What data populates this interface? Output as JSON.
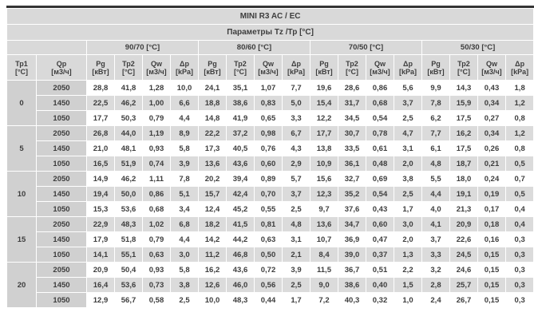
{
  "table": {
    "title": "MINI R3 AC / EC",
    "subtitle": "Параметры Tz /Тр [°C]",
    "groups": [
      "90/70 [°C]",
      "80/60 [°C]",
      "70/50 [°C]",
      "50/30 [°C]"
    ],
    "row_headers": [
      {
        "name": "Тр1",
        "unit": "[°C]"
      },
      {
        "name": "Qp",
        "unit": "[м3/ч]"
      }
    ],
    "measure_headers": [
      {
        "name": "Pg",
        "unit": "[кВт]"
      },
      {
        "name": "Тр2",
        "unit": "[°C]"
      },
      {
        "name": "Qw",
        "unit": "[м3/ч]"
      },
      {
        "name": "Δp",
        "unit": "[kPa]"
      }
    ],
    "colors": {
      "header_gray": "#d9d9d9",
      "left_col_gray": "#d0d0d0",
      "stripe_gray": "#dbdbdb",
      "top_border": "#343434",
      "text": "#3d3d3d"
    },
    "blocks": [
      {
        "tp1": "0",
        "rows": [
          {
            "qp": "2050",
            "values": [
              "28,8",
              "41,8",
              "1,28",
              "10,0",
              "24,1",
              "35,1",
              "1,07",
              "7,7",
              "19,6",
              "28,6",
              "0,86",
              "5,6",
              "9,9",
              "14,3",
              "0,43",
              "1,8"
            ]
          },
          {
            "qp": "1450",
            "values": [
              "22,5",
              "46,2",
              "1,00",
              "6,6",
              "18,8",
              "38,6",
              "0,83",
              "5,0",
              "15,4",
              "31,7",
              "0,68",
              "3,7",
              "7,8",
              "15,9",
              "0,34",
              "1,2"
            ]
          },
          {
            "qp": "1050",
            "values": [
              "17,7",
              "50,3",
              "0,79",
              "4,4",
              "14,8",
              "41,9",
              "0,65",
              "3,3",
              "12,2",
              "34,5",
              "0,54",
              "2,5",
              "6,2",
              "17,5",
              "0,27",
              "0,8"
            ]
          }
        ]
      },
      {
        "tp1": "5",
        "rows": [
          {
            "qp": "2050",
            "values": [
              "26,8",
              "44,0",
              "1,19",
              "8,9",
              "22,2",
              "37,2",
              "0,98",
              "6,7",
              "17,7",
              "30,7",
              "0,78",
              "4,7",
              "7,7",
              "16,2",
              "0,34",
              "1,2"
            ]
          },
          {
            "qp": "1450",
            "values": [
              "21,0",
              "48,1",
              "0,93",
              "5,8",
              "17,3",
              "40,5",
              "0,76",
              "4,3",
              "13,8",
              "33,5",
              "0,61",
              "3,1",
              "6,1",
              "17,5",
              "0,26",
              "0,8"
            ]
          },
          {
            "qp": "1050",
            "values": [
              "16,5",
              "51,9",
              "0,74",
              "3,9",
              "13,6",
              "43,6",
              "0,60",
              "2,9",
              "10,9",
              "36,1",
              "0,48",
              "2,0",
              "4,8",
              "18,7",
              "0,21",
              "0,5"
            ]
          }
        ]
      },
      {
        "tp1": "10",
        "rows": [
          {
            "qp": "2050",
            "values": [
              "14,9",
              "46,2",
              "1,11",
              "7,8",
              "20,2",
              "39,4",
              "0,89",
              "5,7",
              "15,6",
              "32,7",
              "0,69",
              "3,8",
              "5,5",
              "18,0",
              "0,24",
              "0,7"
            ]
          },
          {
            "qp": "1450",
            "values": [
              "19,4",
              "50,0",
              "0,86",
              "5,1",
              "15,7",
              "42,4",
              "0,70",
              "3,7",
              "12,3",
              "35,2",
              "0,54",
              "2,5",
              "4,4",
              "19,1",
              "0,19",
              "0,5"
            ]
          },
          {
            "qp": "1050",
            "values": [
              "15,3",
              "53,6",
              "0,68",
              "3,4",
              "12,4",
              "45,2",
              "0,55",
              "2,5",
              "9,7",
              "37,6",
              "0,43",
              "1,7",
              "4,0",
              "21,3",
              "0,17",
              "0,4"
            ]
          }
        ]
      },
      {
        "tp1": "15",
        "rows": [
          {
            "qp": "2050",
            "values": [
              "22,9",
              "48,3",
              "1,02",
              "6,8",
              "18,2",
              "41,5",
              "0,81",
              "4,8",
              "13,6",
              "34,7",
              "0,60",
              "3,0",
              "4,1",
              "20,9",
              "0,18",
              "0,4"
            ]
          },
          {
            "qp": "1450",
            "values": [
              "17,9",
              "51,8",
              "0,79",
              "4,4",
              "14,2",
              "44,2",
              "0,63",
              "3,1",
              "10,7",
              "36,9",
              "0,47",
              "2,0",
              "3,7",
              "22,6",
              "0,16",
              "0,3"
            ]
          },
          {
            "qp": "1050",
            "values": [
              "14,1",
              "55,1",
              "0,63",
              "3,0",
              "11,2",
              "46,8",
              "0,50",
              "2,1",
              "8,4",
              "39,0",
              "0,37",
              "1,3",
              "3,3",
              "24,5",
              "0,15",
              "0,3"
            ]
          }
        ]
      },
      {
        "tp1": "20",
        "rows": [
          {
            "qp": "2050",
            "values": [
              "20,9",
              "50,4",
              "0,93",
              "5,8",
              "16,2",
              "43,6",
              "0,72",
              "3,9",
              "11,5",
              "36,7",
              "0,51",
              "2,2",
              "3,2",
              "24,6",
              "0,15",
              "0,3"
            ]
          },
          {
            "qp": "1450",
            "values": [
              "16,4",
              "53,6",
              "0,73",
              "3,8",
              "12,6",
              "46,0",
              "0,56",
              "2,5",
              "9,0",
              "38,6",
              "0,40",
              "1,5",
              "2,8",
              "25,7",
              "0,15",
              "0,3"
            ]
          },
          {
            "qp": "1050",
            "values": [
              "12,9",
              "56,7",
              "0,58",
              "2,5",
              "10,0",
              "48,3",
              "0,44",
              "1,7",
              "7,2",
              "40,3",
              "0,32",
              "1,0",
              "2,4",
              "26,7",
              "0,15",
              "0,3"
            ]
          }
        ]
      }
    ]
  }
}
